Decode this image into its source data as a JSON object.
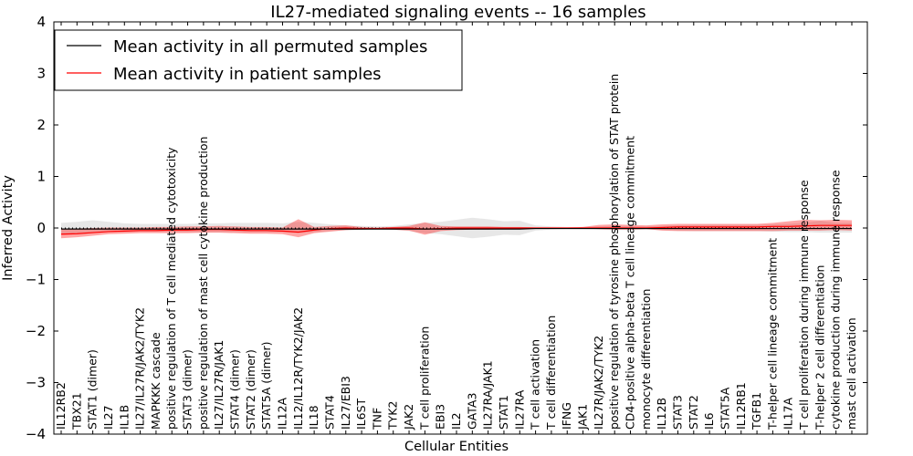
{
  "chart_data": {
    "type": "line",
    "title": "IL27-mediated signaling events -- 16 samples",
    "xlabel": "Cellular Entities",
    "ylabel": "Inferred Activity",
    "ylim": [
      -4,
      4
    ],
    "yticks": [
      -4,
      -3,
      -2,
      -1,
      0,
      1,
      2,
      3,
      4
    ],
    "ytick_labels": [
      "−4",
      "−3",
      "−2",
      "−1",
      "0",
      "1",
      "2",
      "3",
      "4"
    ],
    "legend": {
      "position": "top-left",
      "entries": [
        {
          "label": "Mean activity in all permuted samples",
          "color": "#000000"
        },
        {
          "label": "Mean activity in patient samples",
          "color": "#ff0000"
        }
      ]
    },
    "categories": [
      "IL12RB2",
      "TBX21",
      "STAT1 (dimer)",
      "IL27",
      "IL1B",
      "IL27/IL27R/JAK2/TYK2",
      "MAPKKK cascade",
      "positive regulation of T cell mediated cytotoxicity",
      "STAT3 (dimer)",
      "positive regulation of mast cell cytokine production",
      "IL27/IL27R/JAK1",
      "STAT4 (dimer)",
      "STAT2 (dimer)",
      "STAT5A (dimer)",
      "IL12A",
      "IL12/IL12R/TYK2/JAK2",
      "IL18",
      "STAT4",
      "IL27/EBI3",
      "IL6ST",
      "TNF",
      "TYK2",
      "JAK2",
      "T cell proliferation",
      "EBI3",
      "IL2",
      "GATA3",
      "IL27RA/JAK1",
      "STAT1",
      "IL27RA",
      "T cell activation",
      "T cell differentiation",
      "IFNG",
      "JAK1",
      "IL27R/JAK2/TYK2",
      "positive regulation of tyrosine phosphorylation of STAT protein",
      "CD4-positive alpha-beta T cell lineage commitment",
      "monocyte differentiation",
      "IL12B",
      "STAT3",
      "STAT2",
      "IL6",
      "STAT5A",
      "IL12RB1",
      "TGFB1",
      "T-helper cell lineage commitment",
      "IL17A",
      "T cell proliferation during immune response",
      "T-helper 2 cell differentiation",
      "cytokine production during immune response",
      "mast cell activation"
    ],
    "series": [
      {
        "name": "Mean activity in all permuted samples",
        "color": "#000000",
        "values": [
          -0.02,
          -0.02,
          -0.02,
          -0.02,
          -0.02,
          -0.02,
          -0.02,
          -0.02,
          -0.02,
          -0.02,
          -0.02,
          -0.02,
          -0.02,
          -0.02,
          -0.02,
          -0.02,
          -0.02,
          -0.02,
          -0.02,
          -0.02,
          -0.02,
          -0.02,
          -0.02,
          -0.02,
          -0.02,
          -0.02,
          -0.02,
          -0.02,
          -0.02,
          -0.02,
          -0.01,
          -0.01,
          -0.01,
          -0.01,
          -0.01,
          -0.01,
          -0.01,
          -0.01,
          -0.01,
          -0.01,
          -0.01,
          -0.01,
          -0.01,
          -0.01,
          -0.01,
          -0.01,
          -0.01,
          -0.01,
          -0.01,
          -0.01,
          -0.01
        ],
        "lower": [
          -0.12,
          -0.1,
          -0.08,
          -0.08,
          -0.08,
          -0.07,
          -0.07,
          -0.08,
          -0.08,
          -0.08,
          -0.08,
          -0.08,
          -0.08,
          -0.08,
          -0.08,
          -0.1,
          -0.08,
          -0.06,
          -0.05,
          -0.04,
          -0.03,
          -0.04,
          -0.06,
          -0.1,
          -0.12,
          -0.16,
          -0.2,
          -0.17,
          -0.13,
          -0.14,
          -0.05,
          -0.03,
          -0.02,
          -0.02,
          -0.03,
          -0.04,
          -0.04,
          -0.03,
          -0.04,
          -0.05,
          -0.06,
          -0.06,
          -0.06,
          -0.06,
          -0.06,
          -0.07,
          -0.08,
          -0.08,
          -0.09,
          -0.09,
          -0.09
        ],
        "upper": [
          0.1,
          0.12,
          0.15,
          0.12,
          0.09,
          0.08,
          0.08,
          0.08,
          0.08,
          0.09,
          0.09,
          0.1,
          0.1,
          0.1,
          0.09,
          0.12,
          0.1,
          0.07,
          0.05,
          0.04,
          0.03,
          0.04,
          0.07,
          0.1,
          0.12,
          0.16,
          0.2,
          0.17,
          0.13,
          0.14,
          0.05,
          0.03,
          0.02,
          0.02,
          0.03,
          0.04,
          0.04,
          0.03,
          0.04,
          0.05,
          0.06,
          0.06,
          0.06,
          0.06,
          0.06,
          0.07,
          0.08,
          0.1,
          0.14,
          0.1,
          0.1
        ]
      },
      {
        "name": "Mean activity in patient samples",
        "color": "#ff0000",
        "values": [
          -0.12,
          -0.11,
          -0.09,
          -0.07,
          -0.06,
          -0.05,
          -0.05,
          -0.04,
          -0.04,
          -0.03,
          -0.03,
          -0.04,
          -0.05,
          -0.05,
          -0.06,
          -0.08,
          -0.04,
          -0.01,
          0.0,
          -0.01,
          -0.01,
          0.0,
          0.0,
          -0.02,
          -0.01,
          0.0,
          0.0,
          0.0,
          0.0,
          0.0,
          0.0,
          0.0,
          0.0,
          0.0,
          0.0,
          0.0,
          0.0,
          0.0,
          0.01,
          0.02,
          0.02,
          0.02,
          0.02,
          0.02,
          0.02,
          0.03,
          0.03,
          0.04,
          0.05,
          0.05,
          0.05
        ],
        "lower": [
          -0.2,
          -0.18,
          -0.15,
          -0.12,
          -0.11,
          -0.1,
          -0.1,
          -0.1,
          -0.1,
          -0.09,
          -0.09,
          -0.1,
          -0.11,
          -0.11,
          -0.12,
          -0.18,
          -0.1,
          -0.07,
          -0.04,
          -0.03,
          -0.02,
          -0.03,
          -0.05,
          -0.13,
          -0.06,
          -0.04,
          -0.03,
          -0.03,
          -0.02,
          -0.02,
          -0.01,
          0.0,
          0.0,
          -0.01,
          -0.02,
          -0.03,
          -0.03,
          -0.02,
          -0.05,
          -0.06,
          -0.06,
          -0.06,
          -0.06,
          -0.06,
          -0.06,
          -0.06,
          -0.05,
          -0.05,
          -0.05,
          -0.04,
          -0.05
        ],
        "upper": [
          -0.02,
          -0.01,
          0.0,
          0.01,
          0.01,
          0.01,
          0.02,
          0.02,
          0.03,
          0.03,
          0.04,
          0.03,
          0.02,
          0.02,
          0.01,
          0.17,
          0.02,
          0.04,
          0.05,
          0.02,
          0.01,
          0.02,
          0.04,
          0.11,
          0.04,
          0.03,
          0.03,
          0.03,
          0.02,
          0.02,
          0.01,
          0.01,
          0.01,
          0.02,
          0.06,
          0.07,
          0.06,
          0.05,
          0.07,
          0.08,
          0.08,
          0.08,
          0.08,
          0.08,
          0.08,
          0.1,
          0.13,
          0.16,
          0.15,
          0.16,
          0.15
        ]
      }
    ]
  }
}
